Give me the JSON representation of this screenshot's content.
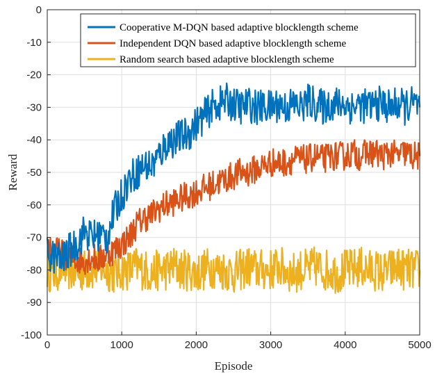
{
  "chart_data": {
    "type": "line",
    "title": "",
    "xlabel": "Episode",
    "ylabel": "Reward",
    "xlim": [
      0,
      5000
    ],
    "ylim": [
      -100,
      0
    ],
    "xticks": [
      0,
      1000,
      2000,
      3000,
      4000,
      5000
    ],
    "yticks": [
      -100,
      -90,
      -80,
      -70,
      -60,
      -50,
      -40,
      -30,
      -20,
      -10,
      0
    ],
    "grid": true,
    "legend_position": "top-right",
    "series": [
      {
        "name": "Cooperative M-DQN based adaptive blocklength scheme",
        "color": "#0072BD",
        "x": [
          0,
          100,
          200,
          300,
          400,
          500,
          600,
          700,
          800,
          900,
          1000,
          1100,
          1200,
          1300,
          1400,
          1500,
          1600,
          1700,
          1800,
          1900,
          2000,
          2100,
          2200,
          2300,
          2400,
          2500,
          2600,
          2700,
          2800,
          2900,
          3000,
          3100,
          3200,
          3300,
          3400,
          3500,
          3600,
          3700,
          3800,
          3900,
          4000,
          4100,
          4200,
          4300,
          4400,
          4500,
          4600,
          4700,
          4800,
          4900,
          5000
        ],
        "y": [
          -75,
          -76,
          -77,
          -74,
          -72,
          -68,
          -70,
          -69,
          -70,
          -62,
          -57,
          -52,
          -50,
          -48,
          -48,
          -45,
          -41,
          -40,
          -39,
          -38,
          -35,
          -33,
          -30,
          -29,
          -28,
          -29,
          -30,
          -29,
          -30,
          -30,
          -30,
          -29,
          -30,
          -29,
          -30,
          -28,
          -29,
          -30,
          -29,
          -29,
          -29,
          -30,
          -29,
          -30,
          -29,
          -29,
          -30,
          -29,
          -30,
          -29,
          -30
        ]
      },
      {
        "name": "Independent DQN based adaptive blocklength scheme",
        "color": "#D95319",
        "x": [
          0,
          100,
          200,
          300,
          400,
          500,
          600,
          700,
          800,
          900,
          1000,
          1100,
          1200,
          1300,
          1400,
          1500,
          1600,
          1700,
          1800,
          1900,
          2000,
          2100,
          2200,
          2300,
          2400,
          2500,
          2600,
          2700,
          2800,
          2900,
          3000,
          3100,
          3200,
          3300,
          3400,
          3500,
          3600,
          3700,
          3800,
          3900,
          4000,
          4100,
          4200,
          4300,
          4400,
          4500,
          4600,
          4700,
          4800,
          4900,
          5000
        ],
        "y": [
          -72,
          -74,
          -75,
          -76,
          -77,
          -77,
          -76,
          -77,
          -75,
          -74,
          -72,
          -70,
          -66,
          -64,
          -63,
          -61,
          -60,
          -59,
          -58,
          -57,
          -56,
          -55,
          -54,
          -53,
          -52,
          -51,
          -50,
          -50,
          -49,
          -48,
          -47,
          -47,
          -47,
          -46,
          -46,
          -46,
          -45,
          -46,
          -45,
          -45,
          -45,
          -44,
          -45,
          -44,
          -44,
          -45,
          -44,
          -45,
          -44,
          -45,
          -45
        ]
      },
      {
        "name": "Random search based adaptive blocklength scheme",
        "color": "#EDB120",
        "x": [
          0,
          100,
          200,
          300,
          400,
          500,
          600,
          700,
          800,
          900,
          1000,
          1100,
          1200,
          1300,
          1400,
          1500,
          1600,
          1700,
          1800,
          1900,
          2000,
          2100,
          2200,
          2300,
          2400,
          2500,
          2600,
          2700,
          2800,
          2900,
          3000,
          3100,
          3200,
          3300,
          3400,
          3500,
          3600,
          3700,
          3800,
          3900,
          4000,
          4100,
          4200,
          4300,
          4400,
          4500,
          4600,
          4700,
          4800,
          4900,
          5000
        ],
        "y": [
          -80,
          -81,
          -79,
          -80,
          -81,
          -80,
          -80,
          -79,
          -80,
          -81,
          -80,
          -80,
          -79,
          -80,
          -81,
          -80,
          -80,
          -79,
          -80,
          -80,
          -81,
          -80,
          -79,
          -80,
          -80,
          -81,
          -80,
          -79,
          -80,
          -80,
          -80,
          -79,
          -80,
          -81,
          -80,
          -80,
          -79,
          -80,
          -80,
          -81,
          -80,
          -80,
          -79,
          -80,
          -80,
          -81,
          -80,
          -79,
          -80,
          -80,
          -80
        ]
      }
    ]
  }
}
